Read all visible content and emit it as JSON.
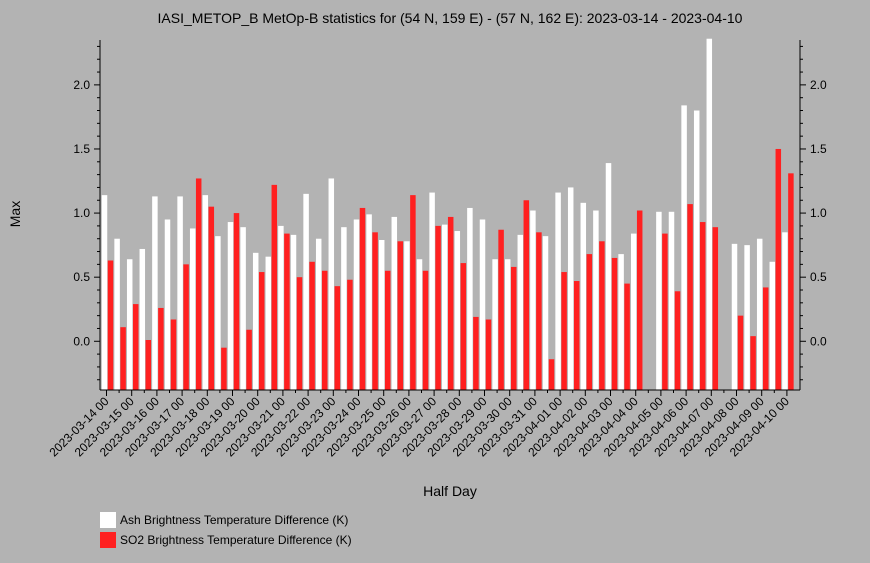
{
  "chart_data": {
    "type": "bar",
    "title": "IASI_METOP_B MetOp-B statistics for (54 N, 159 E) - (57 N, 162 E): 2023-03-14 - 2023-04-10",
    "xlabel": "Half Day",
    "ylabel": "Max",
    "ylim": [
      -0.38,
      2.35
    ],
    "yticks": [
      0.0,
      0.5,
      1.0,
      1.5,
      2.0
    ],
    "ytick_labels": [
      "0.0",
      "0.5",
      "1.0",
      "1.5",
      "2.0"
    ],
    "x_tick_labels": [
      "2023-03-14 00",
      "2023-03-15 00",
      "2023-03-16 00",
      "2023-03-17 00",
      "2023-03-18 00",
      "2023-03-19 00",
      "2023-03-20 00",
      "2023-03-21 00",
      "2023-03-22 00",
      "2023-03-23 00",
      "2023-03-24 00",
      "2023-03-25 00",
      "2023-03-26 00",
      "2023-03-27 00",
      "2023-03-28 00",
      "2023-03-29 00",
      "2023-03-30 00",
      "2023-03-31 00",
      "2023-04-01 00",
      "2023-04-02 00",
      "2023-04-03 00",
      "2023-04-04 00",
      "2023-04-05 00",
      "2023-04-06 00",
      "2023-04-07 00",
      "2023-04-08 00",
      "2023-04-09 00",
      "2023-04-10 00"
    ],
    "grid": false,
    "legend_position": "bottom-left",
    "series": [
      {
        "name": "Ash Brightness Temperature Difference (K)",
        "color": "#ffffff",
        "values": [
          1.14,
          0.8,
          0.64,
          0.72,
          1.13,
          0.95,
          1.13,
          0.88,
          1.14,
          0.82,
          0.93,
          0.89,
          0.69,
          0.66,
          0.9,
          0.83,
          1.15,
          0.8,
          1.27,
          0.89,
          0.95,
          0.99,
          0.79,
          0.97,
          0.78,
          0.64,
          1.16,
          0.91,
          0.86,
          1.04,
          0.95,
          0.64,
          0.64,
          0.83,
          1.02,
          0.82,
          1.16,
          1.2,
          1.08,
          1.02,
          1.39,
          0.68,
          0.84,
          null,
          1.01,
          1.01,
          1.84,
          1.8,
          2.36,
          null,
          0.76,
          0.75,
          0.8,
          0.62,
          0.85
        ]
      },
      {
        "name": "SO2 Brightness Temperature Difference (K)",
        "color": "#ff2020",
        "values": [
          0.63,
          0.11,
          0.29,
          0.01,
          0.26,
          0.17,
          0.6,
          1.27,
          1.05,
          -0.05,
          1.0,
          0.09,
          0.54,
          1.22,
          0.84,
          0.5,
          0.62,
          0.55,
          0.43,
          0.48,
          1.04,
          0.85,
          0.55,
          0.78,
          1.14,
          0.55,
          0.9,
          0.97,
          0.61,
          0.19,
          0.17,
          0.87,
          0.58,
          1.1,
          0.85,
          -0.14,
          0.54,
          0.47,
          0.68,
          0.78,
          0.65,
          0.45,
          1.02,
          null,
          0.84,
          0.39,
          1.07,
          0.93,
          0.89,
          null,
          0.2,
          0.04,
          0.42,
          1.5,
          1.31
        ]
      }
    ]
  }
}
